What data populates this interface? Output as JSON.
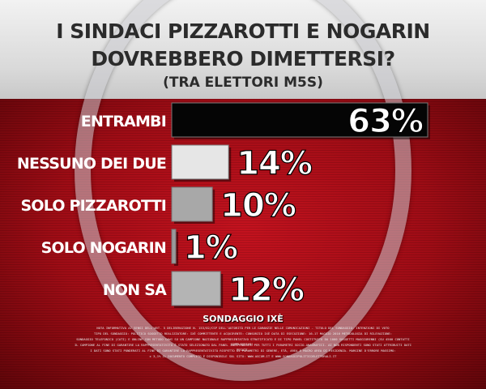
{
  "title_line1": "I SINDACI PIZZAROTTI E NOGARIN",
  "title_line2": "DOVREBBERO DIMETTERSI?",
  "subtitle": "(TRA ELETTORI M5S)",
  "source": "SONDAGGIO IXÈ",
  "footnote": [
    "NOTA INFORMATIVA AI SENSI DELL'ART. 5 DELIBERAZIONE N. 153/02/CSP DELL'AUTORITÀ PER LE GARANZIE NELLE COMUNICAZIONI - TITOLO DEL SONDAGGIO: INTENZIONI DI VOTO",
    "TIPO DEL SONDAGGIO: POLITICO SOGGETTO REALIZZATORE: IXÈ COMMITTENTE E ACQUIRENTE: CONSORZIO IXÈ DATA DI ESECUZIONE: 16-17 MAGGIO 2016 METODOLOGIA DI RILEVAZIONE:",
    "SONDAGGIO TELEFONICO (CATI) E ONLINE CON METODO CAWI SU UN CAMPIONE NAZIONALE RAPPRESENTATIVO STRATIFICATO E DI TIPO PANEL COSTITUITO DA 1000 SOGGETTI MAGGIORENNI (SU 4500 CONTATTI COMPLESSIVI).",
    "IL CAMPIONE AL FINE DI GARANTIRE LA RAPPRESENTATIVITÀ È STATO SELEZIONATO DAL PANEL INDIPENDENTE PER TUTTI I PARAMETRI SOCIO-ANAGRAFICI. AI NON RISPONDENTI SONO STATI ATTRIBUITI DATI PESATI.",
    "I DATI SONO STATI PONDERATI AL FINE DI GARANTIRE LA RAPPRESENTATIVITÀ RISPETTO AI PARAMETRI DI GENERE, ETÀ, AREA E MACRO AREA DI RESIDENZA. MARGINE D'ERRORE MASSIMO:",
    "± 3,1% IL DOCUMENTO COMPLETO È DISPONIBILE SUL SITO: WWW.AGCOM.IT E WWW.SONDAGGIPOLITICOELETTORALI.IT"
  ],
  "colors": {
    "background_red": "#b80f19",
    "label_text": "#ffffff",
    "title_text": "#2b2b2b"
  },
  "chart_data": {
    "type": "bar",
    "orientation": "horizontal",
    "title": "I SINDACI PIZZAROTTI E NOGARIN DOVREBBERO DIMETTERSI?",
    "subtitle": "(TRA ELETTORI M5S)",
    "categories": [
      "ENTRAMBI",
      "NESSUNO DEI DUE",
      "SOLO PIZZAROTTI",
      "SOLO NOGARIN",
      "NON SA"
    ],
    "values": [
      63,
      14,
      10,
      1,
      12
    ],
    "value_labels": [
      "63%",
      "14%",
      "10%",
      "1%",
      "12%"
    ],
    "bar_colors": [
      "#050505",
      "#e6e6e6",
      "#a8a8a8",
      "#9a9a9a",
      "#b4b4b4"
    ],
    "unit": "%",
    "xlim": [
      0,
      63
    ],
    "grid": false,
    "legend": "none"
  }
}
